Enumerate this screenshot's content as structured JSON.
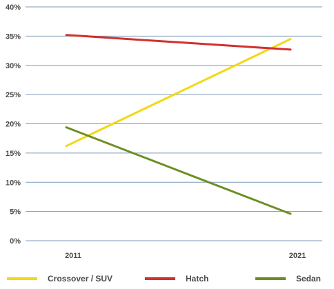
{
  "chart_data": {
    "type": "line",
    "x": [
      "2011",
      "2021"
    ],
    "y_ticks": [
      "0%",
      "5%",
      "10%",
      "15%",
      "20%",
      "25%",
      "30%",
      "35%",
      "40%"
    ],
    "ylim": [
      0,
      40
    ],
    "grid": true,
    "legend_position": "bottom",
    "series": [
      {
        "name": "Crossover / SUV",
        "color": "#f2d816",
        "values": [
          16.2,
          34.5
        ]
      },
      {
        "name": "Hatch",
        "color": "#d2302c",
        "values": [
          35.2,
          32.7
        ]
      },
      {
        "name": "Sedan",
        "color": "#6b8e23",
        "values": [
          19.4,
          4.6
        ]
      }
    ]
  }
}
